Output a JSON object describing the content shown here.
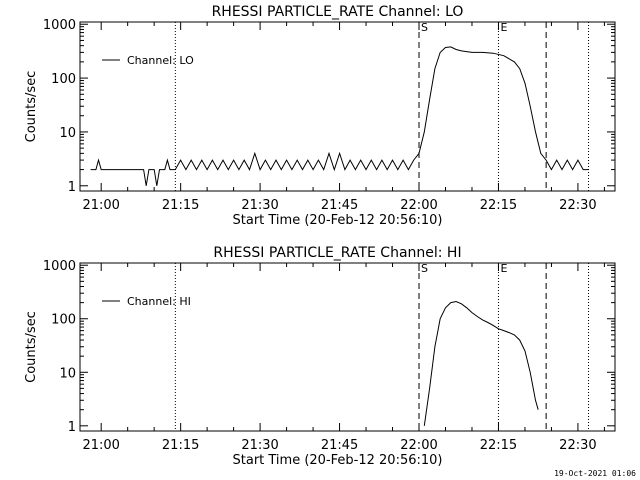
{
  "footer_timestamp": "19-Oct-2021 01:06",
  "chart_data": [
    {
      "type": "line",
      "title": "RHESSI PARTICLE_RATE Channel: LO",
      "xlabel": "Start Time (20-Feb-12 20:56:10)",
      "ylabel": "Counts/sec",
      "y_scale": "log",
      "ylim": [
        0.8,
        1100
      ],
      "xlim": [
        "20:56",
        "22:37"
      ],
      "x_ticks": [
        "21:00",
        "21:15",
        "21:30",
        "21:45",
        "22:00",
        "22:15",
        "22:30"
      ],
      "y_ticks": [
        "1",
        "10",
        "100",
        "1000"
      ],
      "legend": {
        "placement": "top-left",
        "entries": [
          "Channel: LO"
        ]
      },
      "markers": [
        {
          "time": "22:00",
          "style": "dashed",
          "label": "S"
        },
        {
          "time": "22:15",
          "style": "dotted",
          "label": "E"
        },
        {
          "time": "21:14",
          "style": "dotted",
          "label": ""
        },
        {
          "time": "22:24",
          "style": "dashed",
          "label": ""
        },
        {
          "time": "22:32",
          "style": "dotted",
          "label": ""
        }
      ],
      "series": [
        {
          "color": "#000000",
          "points": [
            [
              "20:58",
              2
            ],
            [
              "20:59",
              2
            ],
            [
              "20:59:30",
              3
            ],
            [
              "21:00",
              2
            ],
            [
              "21:08",
              2
            ],
            [
              "21:08:30",
              1
            ],
            [
              "21:09",
              2
            ],
            [
              "21:10",
              2
            ],
            [
              "21:10:30",
              1
            ],
            [
              "21:11",
              2
            ],
            [
              "21:12",
              2
            ],
            [
              "21:12:30",
              3
            ],
            [
              "21:13",
              2
            ],
            [
              "21:14",
              2
            ],
            [
              "21:15",
              3
            ],
            [
              "21:16",
              2
            ],
            [
              "21:17",
              3
            ],
            [
              "21:18",
              2
            ],
            [
              "21:19",
              3
            ],
            [
              "21:20",
              2
            ],
            [
              "21:21",
              3
            ],
            [
              "21:22",
              2
            ],
            [
              "21:23",
              3
            ],
            [
              "21:24",
              2
            ],
            [
              "21:25",
              3
            ],
            [
              "21:26",
              2
            ],
            [
              "21:27",
              3
            ],
            [
              "21:28",
              2
            ],
            [
              "21:29",
              4
            ],
            [
              "21:30",
              2
            ],
            [
              "21:31",
              3
            ],
            [
              "21:32",
              2
            ],
            [
              "21:33",
              3
            ],
            [
              "21:34",
              2
            ],
            [
              "21:35",
              3
            ],
            [
              "21:36",
              2
            ],
            [
              "21:37",
              3
            ],
            [
              "21:38",
              2
            ],
            [
              "21:39",
              3
            ],
            [
              "21:40",
              2
            ],
            [
              "21:41",
              3
            ],
            [
              "21:42",
              2
            ],
            [
              "21:43",
              4
            ],
            [
              "21:44",
              2
            ],
            [
              "21:45",
              4
            ],
            [
              "21:46",
              2
            ],
            [
              "21:47",
              3
            ],
            [
              "21:48",
              2
            ],
            [
              "21:49",
              3
            ],
            [
              "21:50",
              2
            ],
            [
              "21:51",
              3
            ],
            [
              "21:52",
              2
            ],
            [
              "21:53",
              3
            ],
            [
              "21:54",
              2
            ],
            [
              "21:55",
              3
            ],
            [
              "21:56",
              2
            ],
            [
              "21:57",
              3
            ],
            [
              "21:58",
              2
            ],
            [
              "21:59",
              3
            ],
            [
              "22:00",
              4
            ],
            [
              "22:01",
              10
            ],
            [
              "22:02",
              40
            ],
            [
              "22:03",
              150
            ],
            [
              "22:04",
              300
            ],
            [
              "22:05",
              370
            ],
            [
              "22:06",
              380
            ],
            [
              "22:07",
              340
            ],
            [
              "22:08",
              320
            ],
            [
              "22:10",
              300
            ],
            [
              "22:12",
              300
            ],
            [
              "22:14",
              290
            ],
            [
              "22:16",
              260
            ],
            [
              "22:18",
              200
            ],
            [
              "22:19",
              150
            ],
            [
              "22:20",
              80
            ],
            [
              "22:21",
              30
            ],
            [
              "22:22",
              10
            ],
            [
              "22:23",
              4
            ],
            [
              "22:24",
              3
            ],
            [
              "22:25",
              2
            ],
            [
              "22:26",
              3
            ],
            [
              "22:27",
              2
            ],
            [
              "22:28",
              3
            ],
            [
              "22:29",
              2
            ],
            [
              "22:30",
              3
            ],
            [
              "22:31",
              2
            ],
            [
              "22:32",
              2
            ]
          ]
        }
      ]
    },
    {
      "type": "line",
      "title": "RHESSI PARTICLE_RATE Channel: HI",
      "xlabel": "Start Time (20-Feb-12 20:56:10)",
      "ylabel": "Counts/sec",
      "y_scale": "log",
      "ylim": [
        0.8,
        1100
      ],
      "xlim": [
        "20:56",
        "22:37"
      ],
      "x_ticks": [
        "21:00",
        "21:15",
        "21:30",
        "21:45",
        "22:00",
        "22:15",
        "22:30"
      ],
      "y_ticks": [
        "1",
        "10",
        "100",
        "1000"
      ],
      "legend": {
        "placement": "top-left",
        "entries": [
          "Channel: HI"
        ]
      },
      "markers": [
        {
          "time": "22:00",
          "style": "dashed",
          "label": "S"
        },
        {
          "time": "22:15",
          "style": "dotted",
          "label": "E"
        },
        {
          "time": "21:14",
          "style": "dotted",
          "label": ""
        },
        {
          "time": "22:24",
          "style": "dashed",
          "label": ""
        },
        {
          "time": "22:32",
          "style": "dotted",
          "label": ""
        }
      ],
      "series": [
        {
          "color": "#000000",
          "points": [
            [
              "22:01",
              1
            ],
            [
              "22:02",
              5
            ],
            [
              "22:03",
              30
            ],
            [
              "22:04",
              100
            ],
            [
              "22:05",
              160
            ],
            [
              "22:06",
              200
            ],
            [
              "22:07",
              210
            ],
            [
              "22:08",
              190
            ],
            [
              "22:09",
              160
            ],
            [
              "22:10",
              130
            ],
            [
              "22:11",
              110
            ],
            [
              "22:12",
              95
            ],
            [
              "22:13",
              85
            ],
            [
              "22:14",
              75
            ],
            [
              "22:15",
              65
            ],
            [
              "22:16",
              60
            ],
            [
              "22:17",
              55
            ],
            [
              "22:18",
              50
            ],
            [
              "22:19",
              40
            ],
            [
              "22:20",
              25
            ],
            [
              "22:21",
              10
            ],
            [
              "22:22",
              3
            ],
            [
              "22:22:30",
              2
            ]
          ]
        }
      ]
    }
  ]
}
